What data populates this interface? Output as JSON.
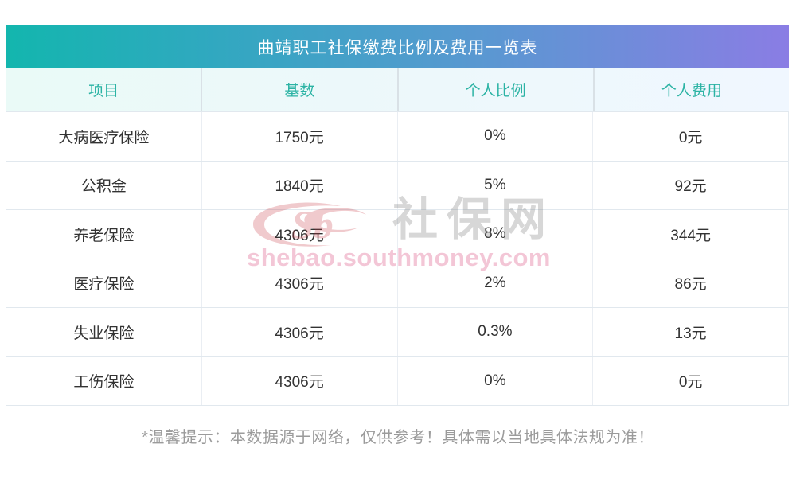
{
  "header": {
    "title": "曲靖职工社保缴费比例及费用一览表"
  },
  "chart_data": {
    "type": "table",
    "title": "曲靖职工社保缴费比例及费用一览表",
    "columns": [
      "项目",
      "基数",
      "个人比例",
      "个人费用"
    ],
    "rows": [
      [
        "大病医疗保险",
        "1750元",
        "0%",
        "0元"
      ],
      [
        "公积金",
        "1840元",
        "5%",
        "92元"
      ],
      [
        "养老保险",
        "4306元",
        "8%",
        "344元"
      ],
      [
        "医疗保险",
        "4306元",
        "2%",
        "86元"
      ],
      [
        "失业保险",
        "4306元",
        "0.3%",
        "13元"
      ],
      [
        "工伤保险",
        "4306元",
        "0%",
        "0元"
      ]
    ],
    "note": "*温馨提示：本数据源于网络，仅供参考！具体需以当地具体法规为准！"
  },
  "footer": {
    "note": "*温馨提示：本数据源于网络，仅供参考！具体需以当地具体法规为准！"
  },
  "watermark": {
    "logo_text": "Sb",
    "site_name": "社保网",
    "site_url": "shebao.southmoney.com"
  },
  "colors": {
    "gradient_start": "#13b6ae",
    "gradient_end": "#8a7de4",
    "header_text_teal": "#2bb3a4",
    "body_text": "#333333",
    "note_text": "#9b9b9b",
    "watermark_red": "#c5303c",
    "watermark_pink": "#e4799f",
    "watermark_gray": "#7d7d7d"
  }
}
